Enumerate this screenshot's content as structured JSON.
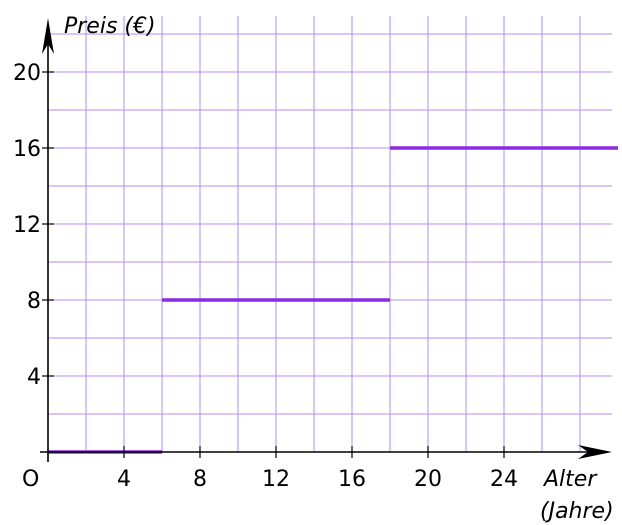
{
  "chart_data": {
    "type": "line",
    "xlabel_line1": "Alter",
    "xlabel_line2": "(Jahre)",
    "ylabel": "Preis (€)",
    "origin_label": "O",
    "xlim": [
      0,
      30
    ],
    "ylim": [
      0,
      22
    ],
    "grid": true,
    "grid_step_x": 2,
    "grid_step_y": 2,
    "x_ticks": [
      4,
      8,
      12,
      16,
      20,
      24
    ],
    "x_tick_labels": [
      "4",
      "8",
      "12",
      "16",
      "20",
      "24"
    ],
    "y_ticks": [
      4,
      8,
      12,
      16,
      20
    ],
    "y_tick_labels": [
      "4",
      "8",
      "12",
      "16",
      "20"
    ],
    "series": [
      {
        "segments": [
          {
            "x": [
              0,
              6
            ],
            "y": [
              0,
              0
            ]
          },
          {
            "x": [
              6,
              18
            ],
            "y": [
              8,
              8
            ]
          },
          {
            "x": [
              18,
              30
            ],
            "y": [
              16,
              16
            ]
          }
        ]
      }
    ],
    "colors": {
      "series": "#8a2be2",
      "grid": "#b08cf0",
      "axis": "#000000"
    }
  }
}
